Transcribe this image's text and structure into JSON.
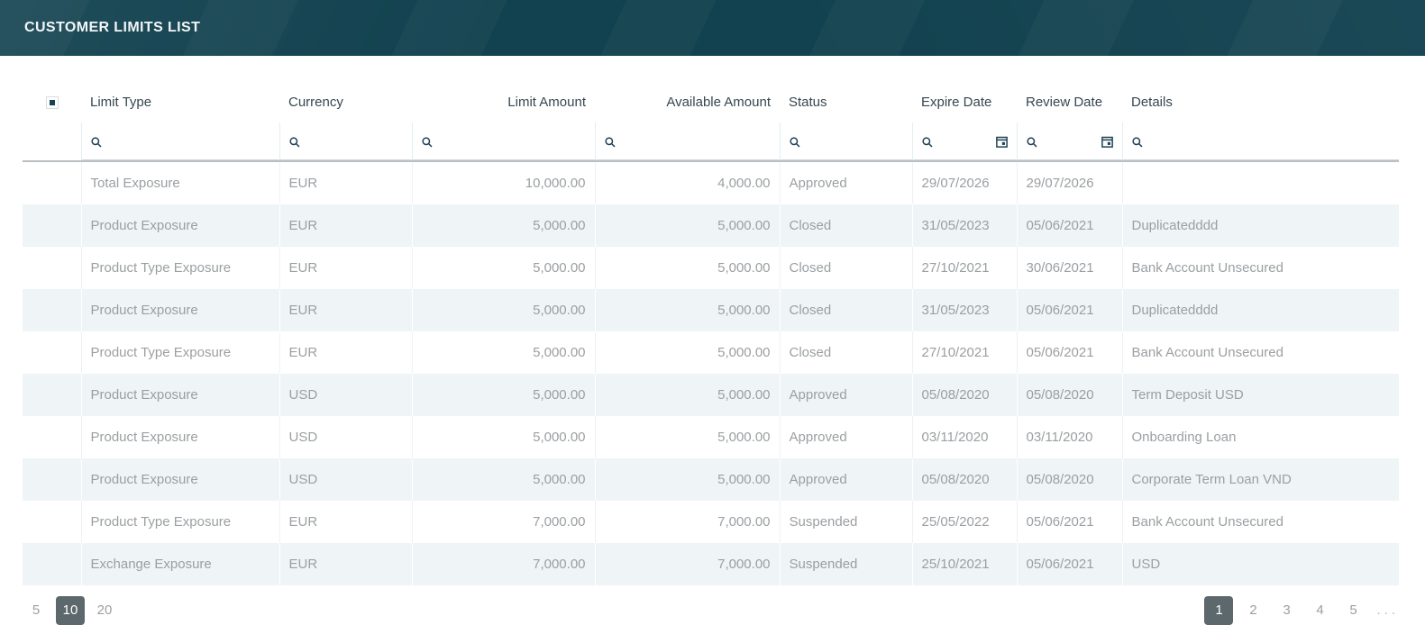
{
  "title_bar": {
    "title": "CUSTOMER LIMITS LIST"
  },
  "grid": {
    "select_all_state": "indeterminate",
    "columns": [
      {
        "label": "Limit Type",
        "align": "left",
        "filter": "text"
      },
      {
        "label": "Currency",
        "align": "left",
        "filter": "text"
      },
      {
        "label": "Limit Amount",
        "align": "right",
        "filter": "text"
      },
      {
        "label": "Available Amount",
        "align": "right",
        "filter": "text"
      },
      {
        "label": "Status",
        "align": "left",
        "filter": "text"
      },
      {
        "label": "Expire Date",
        "align": "left",
        "filter": "date"
      },
      {
        "label": "Review Date",
        "align": "left",
        "filter": "date"
      },
      {
        "label": "Details",
        "align": "left",
        "filter": "text"
      }
    ],
    "rows": [
      [
        "Total Exposure",
        "EUR",
        "10,000.00",
        "4,000.00",
        "Approved",
        "29/07/2026",
        "29/07/2026",
        ""
      ],
      [
        "Product Exposure",
        "EUR",
        "5,000.00",
        "5,000.00",
        "Closed",
        "31/05/2023",
        "05/06/2021",
        "Duplicatedddd"
      ],
      [
        "Product Type Exposure",
        "EUR",
        "5,000.00",
        "5,000.00",
        "Closed",
        "27/10/2021",
        "30/06/2021",
        "Bank Account Unsecured"
      ],
      [
        "Product Exposure",
        "EUR",
        "5,000.00",
        "5,000.00",
        "Closed",
        "31/05/2023",
        "05/06/2021",
        "Duplicatedddd"
      ],
      [
        "Product Type Exposure",
        "EUR",
        "5,000.00",
        "5,000.00",
        "Closed",
        "27/10/2021",
        "05/06/2021",
        "Bank Account Unsecured"
      ],
      [
        "Product Exposure",
        "USD",
        "5,000.00",
        "5,000.00",
        "Approved",
        "05/08/2020",
        "05/08/2020",
        "Term Deposit USD"
      ],
      [
        "Product Exposure",
        "USD",
        "5,000.00",
        "5,000.00",
        "Approved",
        "03/11/2020",
        "03/11/2020",
        "Onboarding Loan"
      ],
      [
        "Product Exposure",
        "USD",
        "5,000.00",
        "5,000.00",
        "Approved",
        "05/08/2020",
        "05/08/2020",
        "Corporate Term Loan VND"
      ],
      [
        "Product Type Exposure",
        "EUR",
        "7,000.00",
        "7,000.00",
        "Suspended",
        "25/05/2022",
        "05/06/2021",
        "Bank Account Unsecured"
      ],
      [
        "Exchange Exposure",
        "EUR",
        "7,000.00",
        "7,000.00",
        "Suspended",
        "25/10/2021",
        "05/06/2021",
        "USD"
      ]
    ]
  },
  "pagination": {
    "page_sizes": [
      "5",
      "10",
      "20"
    ],
    "selected_page_size": "10",
    "pages": [
      "1",
      "2",
      "3",
      "4",
      "5"
    ],
    "selected_page": "1",
    "ellipsis": "..."
  },
  "icons": {
    "search": "search-icon",
    "calendar": "calendar-icon",
    "select_all": "indeterminate-checkbox"
  },
  "colors": {
    "title_bar_bg": "#12414f",
    "header_text": "#37474f",
    "row_text": "#9b9fa2",
    "stripe_bg": "#eff4f7",
    "icon": "#1f4254",
    "pager_selected_bg": "#5d686c",
    "filter_separator": "#b9bfc2"
  }
}
